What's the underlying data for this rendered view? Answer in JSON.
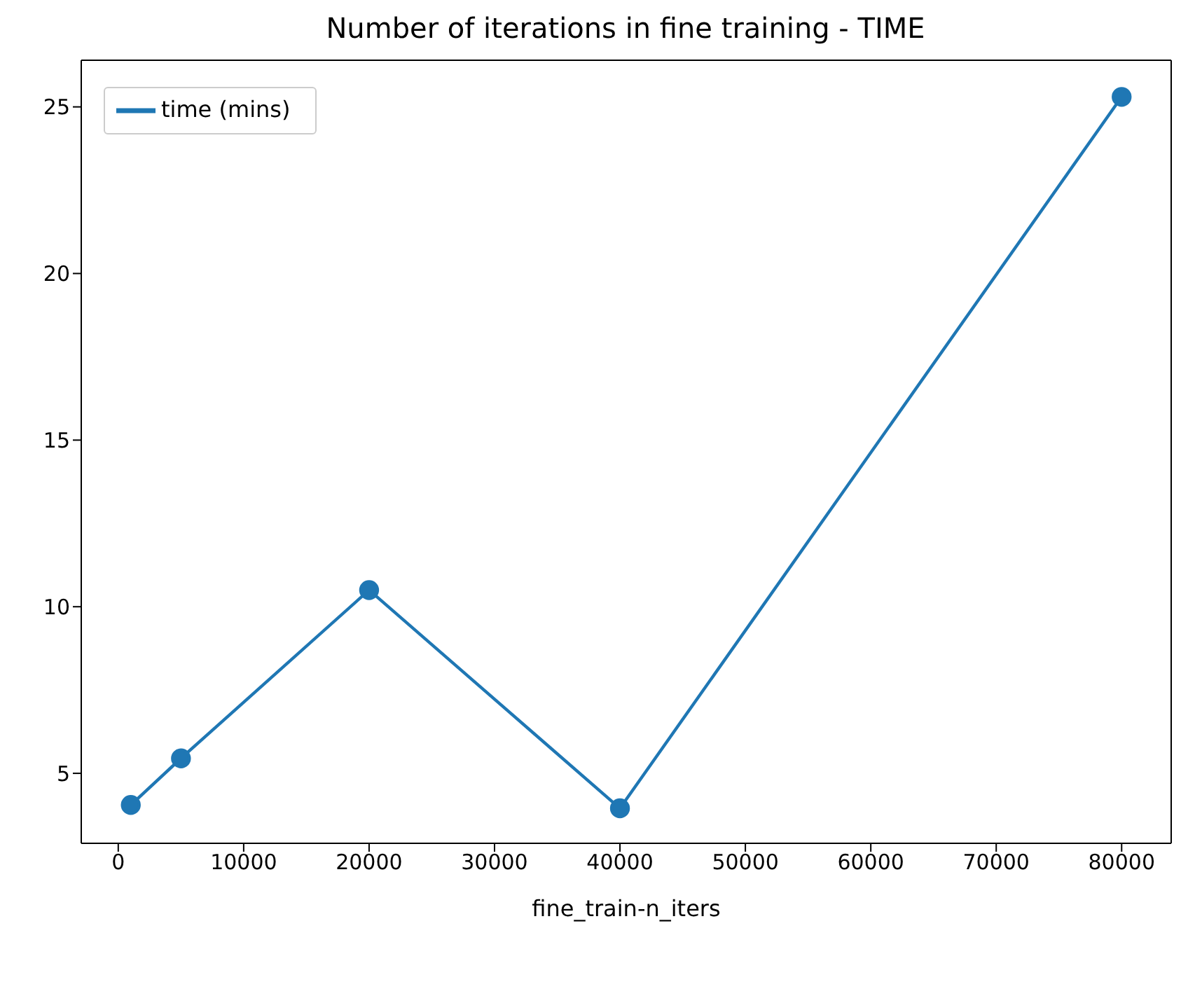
{
  "chart_data": {
    "type": "line",
    "title": "Number of iterations in fine training - TIME",
    "xlabel": "fine_train-n_iters",
    "x": [
      1000,
      5000,
      20000,
      40000,
      80000
    ],
    "series": [
      {
        "name": "time (mins)",
        "color": "#1f77b4",
        "values": [
          4.05,
          5.45,
          10.5,
          3.95,
          25.3
        ]
      }
    ],
    "xlim": [
      -2950,
      83950
    ],
    "xticks": [
      0,
      10000,
      20000,
      30000,
      40000,
      50000,
      60000,
      70000,
      80000
    ],
    "ylim": [
      2.9,
      26.4
    ],
    "yticks": [
      5,
      10,
      15,
      20,
      25
    ],
    "grid": false,
    "legend": "top left",
    "marker": "circle",
    "line_style": "solid"
  }
}
